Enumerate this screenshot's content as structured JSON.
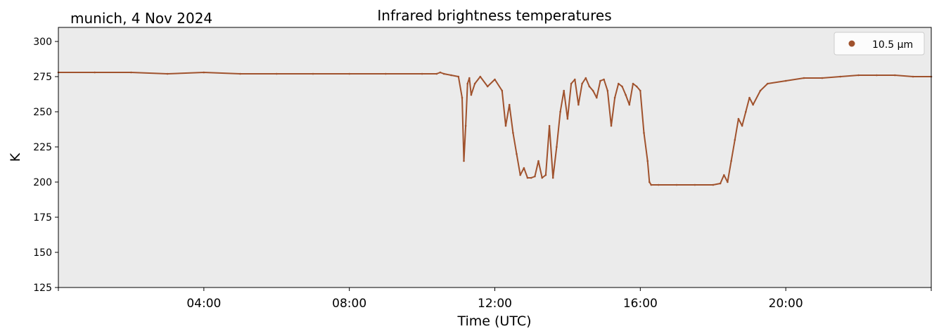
{
  "chart_data": {
    "type": "line",
    "title": "Infrared brightness temperatures",
    "subtitle": "munich, 4 Nov 2024",
    "xlabel": "Time (UTC)",
    "ylabel": "K",
    "xlim": [
      0,
      24
    ],
    "ylim": [
      125,
      310
    ],
    "xticks": [
      4,
      8,
      12,
      16,
      20
    ],
    "xtick_labels": [
      "04:00",
      "08:00",
      "12:00",
      "16:00",
      "20:00"
    ],
    "yticks": [
      125,
      150,
      175,
      200,
      225,
      250,
      275,
      300
    ],
    "ytick_labels": [
      "125",
      "150",
      "175",
      "200",
      "225",
      "250",
      "275",
      "300"
    ],
    "grid": false,
    "legend_position": "top-right",
    "background_color": "#ebebeb",
    "series": [
      {
        "name": "10.5 µm",
        "color": "#a0522d",
        "x": [
          0.0,
          1.0,
          2.0,
          3.0,
          4.0,
          5.0,
          6.0,
          7.0,
          8.0,
          9.0,
          10.0,
          10.4,
          10.5,
          10.6,
          10.8,
          11.0,
          11.1,
          11.15,
          11.2,
          11.25,
          11.3,
          11.35,
          11.45,
          11.6,
          11.8,
          12.0,
          12.2,
          12.3,
          12.4,
          12.5,
          12.6,
          12.7,
          12.8,
          12.9,
          13.0,
          13.1,
          13.2,
          13.3,
          13.4,
          13.5,
          13.6,
          13.7,
          13.8,
          13.9,
          14.0,
          14.1,
          14.2,
          14.3,
          14.4,
          14.5,
          14.6,
          14.7,
          14.8,
          14.9,
          15.0,
          15.1,
          15.2,
          15.3,
          15.4,
          15.5,
          15.6,
          15.7,
          15.8,
          15.9,
          16.0,
          16.1,
          16.2,
          16.25,
          16.3,
          16.5,
          17.0,
          17.5,
          18.0,
          18.2,
          18.3,
          18.4,
          18.5,
          18.6,
          18.7,
          18.8,
          18.9,
          19.0,
          19.1,
          19.3,
          19.5,
          20.0,
          20.5,
          21.0,
          21.5,
          22.0,
          22.5,
          23.0,
          23.5,
          24.0
        ],
        "values": [
          278,
          278,
          278,
          277,
          278,
          277,
          277,
          277,
          277,
          277,
          277,
          277,
          278,
          277,
          276,
          275,
          260,
          215,
          240,
          270,
          274,
          262,
          270,
          275,
          268,
          273,
          265,
          240,
          255,
          235,
          220,
          205,
          210,
          203,
          203,
          204,
          215,
          203,
          205,
          240,
          203,
          225,
          250,
          265,
          245,
          270,
          273,
          255,
          270,
          274,
          268,
          265,
          260,
          272,
          273,
          265,
          240,
          260,
          270,
          268,
          262,
          255,
          270,
          268,
          265,
          235,
          215,
          200,
          198,
          198,
          198,
          198,
          198,
          199,
          205,
          200,
          215,
          230,
          245,
          240,
          250,
          260,
          255,
          265,
          270,
          272,
          274,
          274,
          275,
          276,
          276,
          276,
          275,
          275
        ]
      }
    ]
  }
}
